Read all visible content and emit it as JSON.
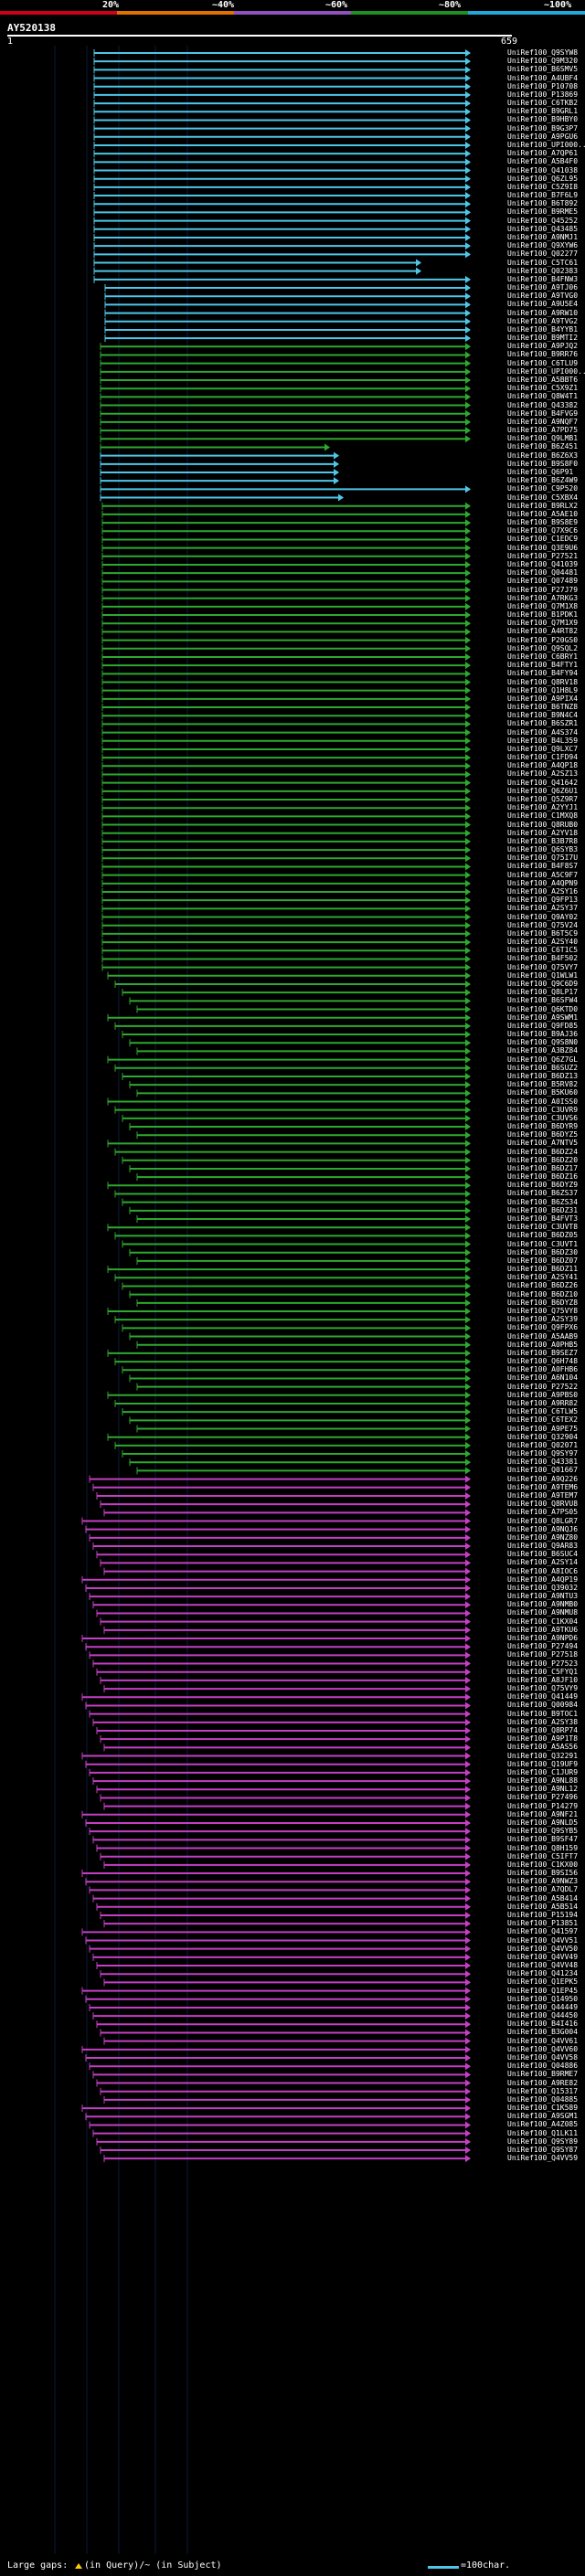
{
  "header": {
    "legend_labels": [
      "20%",
      "~40%",
      "~60%",
      "~80%",
      "~100%"
    ],
    "legend_colors": [
      "#d0001a",
      "#e07000",
      "#9050c0",
      "#209020",
      "#20a8d8"
    ],
    "query_id": "AY520138",
    "scale_start": "1",
    "scale_end": "659"
  },
  "colors": {
    "cyan": "#4fc6e8",
    "green": "#2ea82e",
    "magenta": "#c43fc4"
  },
  "hits": [
    "UniRef100_Q9SYW8",
    "UniRef100_Q9M320",
    "UniRef100_B6SMV5",
    "UniRef100_A4UBF4",
    "UniRef100_P10708",
    "UniRef100_P13869",
    "UniRef100_C6TKB2",
    "UniRef100_B9GRL1",
    "UniRef100_B9HBY0",
    "UniRef100_B9G3P7",
    "UniRef100_A9PGU6",
    "UniRef100_UPI000...",
    "UniRef100_A7QP61",
    "UniRef100_A5B4F0",
    "UniRef100_Q41038",
    "UniRef100_Q6ZL95",
    "UniRef100_C5Z9I8",
    "UniRef100_B7F6L9",
    "UniRef100_B6T892",
    "UniRef100_B9RME5",
    "UniRef100_Q45252",
    "UniRef100_Q43485",
    "UniRef100_A9NMJ1",
    "UniRef100_Q9XYW6",
    "UniRef100_Q02277",
    "UniRef100_C5TC61",
    "UniRef100_Q02383",
    "UniRef100_B4FNW3",
    "UniRef100_A9TJ06",
    "UniRef100_A9TVG0",
    "UniRef100_A9U5E4",
    "UniRef100_A9RW10",
    "UniRef100_A9TVG2",
    "UniRef100_B4YYB1",
    "UniRef100_B9MTI2",
    "UniRef100_A9PJQ2",
    "UniRef100_B9RR76",
    "UniRef100_C6TLU9",
    "UniRef100_UPI000...",
    "UniRef100_A5BBT6",
    "UniRef100_C5X9Z1",
    "UniRef100_Q8W4T1",
    "UniRef100_Q43382",
    "UniRef100_B4FVG9",
    "UniRef100_A9NQF7",
    "UniRef100_A7PD75",
    "UniRef100_Q9LMB1",
    "UniRef100_B6Z451",
    "UniRef100_B6Z6X3",
    "UniRef100_B9S8F0",
    "UniRef100_Q6P91",
    "UniRef100_B6Z4W9",
    "UniRef100_C9P520",
    "UniRef100_C5XBX4",
    "UniRef100_B9RLX2",
    "UniRef100_A5AE10",
    "UniRef100_B9S8E9",
    "UniRef100_Q7X9C6",
    "UniRef100_C1EDC9",
    "UniRef100_Q3E9U6",
    "UniRef100_P27521",
    "UniRef100_Q41039",
    "UniRef100_Q04481",
    "UniRef100_Q07489",
    "UniRef100_P27J79",
    "UniRef100_A7RKG3",
    "UniRef100_Q7M1X8",
    "UniRef100_B1PDK1",
    "UniRef100_Q7M1X9",
    "UniRef100_A4RT82",
    "UniRef100_P20GS0",
    "UniRef100_Q9SQL2",
    "UniRef100_C6BRY1",
    "UniRef100_B4FTY1",
    "UniRef100_B4FY94",
    "UniRef100_Q8RV18",
    "UniRef100_Q1H8L9",
    "UniRef100_A9PIX4",
    "UniRef100_B6TNZ8",
    "UniRef100_B9N4C4",
    "UniRef100_B6SZR1",
    "UniRef100_A4S374",
    "UniRef100_B4L359",
    "UniRef100_Q9LXC7",
    "UniRef100_C1FD94",
    "UniRef100_A4QP18",
    "UniRef100_A2SZ13",
    "UniRef100_Q41642",
    "UniRef100_Q6Z6U1",
    "UniRef100_Q5Z9R7",
    "UniRef100_A2YYJ1",
    "UniRef100_C1MXQ8",
    "UniRef100_Q8RUB0",
    "UniRef100_A2YV18",
    "UniRef100_B3B7R8",
    "UniRef100_Q6SYB3",
    "UniRef100_Q75I7U",
    "UniRef100_B4F8S7",
    "UniRef100_A5C9F7",
    "UniRef100_A4QPN9",
    "UniRef100_A2SY16",
    "UniRef100_Q9FP13",
    "UniRef100_A2SY37",
    "UniRef100_Q9AY02",
    "UniRef100_Q75V24",
    "UniRef100_B6T5C9",
    "UniRef100_A2SY40",
    "UniRef100_C6T1C5",
    "UniRef100_B4F502",
    "UniRef100_Q75VY7",
    "UniRef100_Q1WLW1",
    "UniRef100_Q9C6D9",
    "UniRef100_Q8LP17",
    "UniRef100_B6SFW4",
    "UniRef100_Q6KTD0",
    "UniRef100_A9SWM1",
    "UniRef100_Q9FD85",
    "UniRef100_B9AJ36",
    "UniRef100_Q9S8N0",
    "UniRef100_A3BZ84",
    "UniRef100_Q6Z7GL",
    "UniRef100_B6SUZ2",
    "UniRef100_B6DZ13",
    "UniRef100_B5RV82",
    "UniRef100_B5KU60",
    "UniRef100_A0ISS0",
    "UniRef100_C3UVR9",
    "UniRef100_C3UVS6",
    "UniRef100_B6DYR9",
    "UniRef100_B6DYZ5",
    "UniRef100_A7NTV5",
    "UniRef100_B6DZ24",
    "UniRef100_B6DZ20",
    "UniRef100_B6DZ17",
    "UniRef100_B6DZ16",
    "UniRef100_B6DYZ9",
    "UniRef100_B6ZS37",
    "UniRef100_B6ZS34",
    "UniRef100_B6DZ31",
    "UniRef100_B4FVT3",
    "UniRef100_C3UVT8",
    "UniRef100_B6DZ05",
    "UniRef100_C3UVT1",
    "UniRef100_B6DZ30",
    "UniRef100_B6DZ07",
    "UniRef100_B6DZ11",
    "UniRef100_A2SY41",
    "UniRef100_B6DZ26",
    "UniRef100_B6DZ10",
    "UniRef100_B6DYZ8",
    "UniRef100_Q75VY8",
    "UniRef100_A2SY39",
    "UniRef100_Q9FPX6",
    "UniRef100_A5AAB9",
    "UniRef100_A0PHB5",
    "UniRef100_B9SEZ7",
    "UniRef100_Q6H748",
    "UniRef100_A0FHB6",
    "UniRef100_A6N104",
    "UniRef100_P27522",
    "UniRef100_A9PBS0",
    "UniRef100_A9RR82",
    "UniRef100_C6TLW5",
    "UniRef100_C6TEX2",
    "UniRef100_A9PE75",
    "UniRef100_Q32904",
    "UniRef100_Q02071",
    "UniRef100_Q9SY97",
    "UniRef100_Q43381",
    "UniRef100_Q01667",
    "UniRef100_A9Q226",
    "UniRef100_A9TEM6",
    "UniRef100_A9TEM7",
    "UniRef100_Q8RVU8",
    "UniRef100_A7PS05",
    "UniRef100_Q8LGR7",
    "UniRef100_A9NQJ6",
    "UniRef100_A9NZ80",
    "UniRef100_Q9AR83",
    "UniRef100_B6SUC4",
    "UniRef100_A2SY14",
    "UniRef100_A8IOC6",
    "UniRef100_A4QP19",
    "UniRef100_Q39032",
    "UniRef100_A9NTU3",
    "UniRef100_A9NMB0",
    "UniRef100_A9NMU8",
    "UniRef100_C1KX04",
    "UniRef100_A9TKU6",
    "UniRef100_A9NPD6",
    "UniRef100_P27494",
    "UniRef100_P27518",
    "UniRef100_P27523",
    "UniRef100_C5FYQ1",
    "UniRef100_A8JF10",
    "UniRef100_Q75VY9",
    "UniRef100_Q41449",
    "UniRef100_Q00984",
    "UniRef100_B9TOC1",
    "UniRef100_A2SY38",
    "UniRef100_Q8RP74",
    "UniRef100_A9P1T8",
    "UniRef100_A5AS56",
    "UniRef100_Q32291",
    "UniRef100_Q19UF9",
    "UniRef100_C1JUR9",
    "UniRef100_A9NL88",
    "UniRef100_A9NL12",
    "UniRef100_P27496",
    "UniRef100_P14279",
    "UniRef100_A9NF21",
    "UniRef100_A9NLD5",
    "UniRef100_Q9SYB5",
    "UniRef100_B9SF47",
    "UniRef100_Q8H159",
    "UniRef100_C5IFT7",
    "UniRef100_C1KX00",
    "UniRef100_B9SI56",
    "UniRef100_A9NWZ3",
    "UniRef100_A7QDL7",
    "UniRef100_A5B414",
    "UniRef100_A5B514",
    "UniRef100_P15194",
    "UniRef100_P13851",
    "UniRef100_Q41597",
    "UniRef100_Q4VV51",
    "UniRef100_Q4VV50",
    "UniRef100_Q4VV49",
    "UniRef100_Q4VV48",
    "UniRef100_Q41234",
    "UniRef100_Q1EPK5",
    "UniRef100_Q1EP45",
    "UniRef100_Q14950",
    "UniRef100_Q44449",
    "UniRef100_Q44450",
    "UniRef100_B4I416",
    "UniRef100_B3G004",
    "UniRef100_Q4VV61",
    "UniRef100_Q4VV60",
    "UniRef100_Q4VV58",
    "UniRef100_Q04886",
    "UniRef100_B9RME7",
    "UniRef100_A9RE82",
    "UniRef100_Q15317",
    "UniRef100_Q04885",
    "UniRef100_C1K589",
    "UniRef100_A9SGM1",
    "UniRef100_A4Z085",
    "UniRef100_Q1LK11",
    "UniRef100_Q9SY89",
    "UniRef100_Q9SY87",
    "UniRef100_Q4VV59"
  ],
  "footer": {
    "gaps_label": "Large gaps:",
    "gaps_text": "(in Query)/~ (in Subject)",
    "scale_text": "=100char."
  }
}
